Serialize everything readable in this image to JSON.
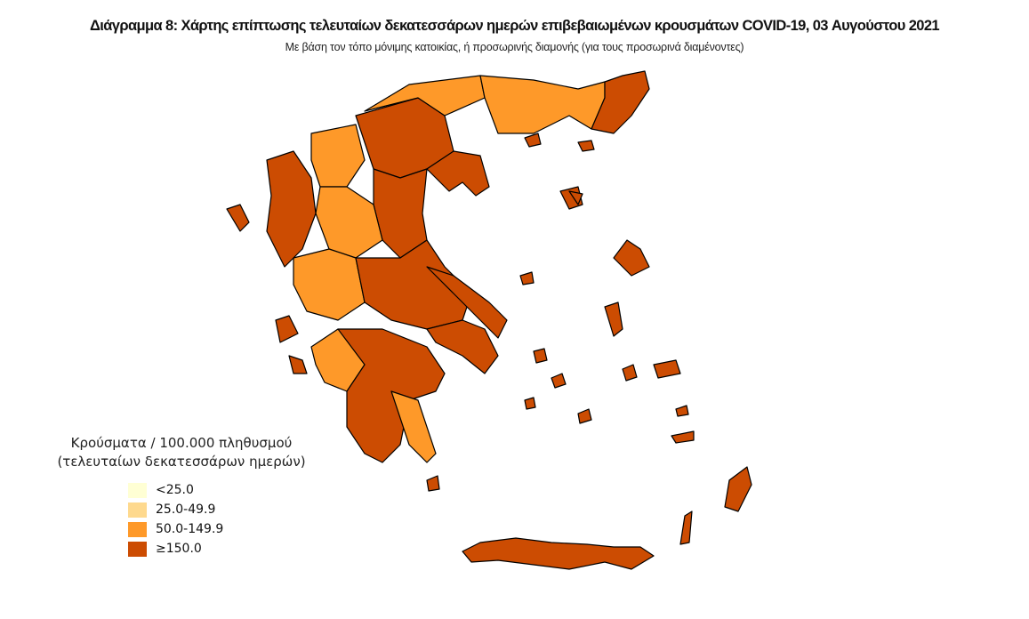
{
  "title": "Διάγραμμα 8: Χάρτης επίπτωσης τελευταίων δεκατεσσάρων ημερών επιβεβαιωμένων κρουσμάτων COVID-19, 03 Αυγούστου 2021",
  "subtitle": "Με βάση τον τόπο μόνιμης κατοικίας, ή προσωρινής διαμονής (για τους προσωρινά διαμένοντες)",
  "legend": {
    "title_line1": "Κρούσματα / 100.000 πληθυσμού",
    "title_line2": "(τελευταίων δεκατεσσάρων ημερών)",
    "classes": [
      {
        "label": "<25.0",
        "color": "#FFFFD4"
      },
      {
        "label": "25.0-49.9",
        "color": "#FED98E"
      },
      {
        "label": "50.0-149.9",
        "color": "#FE9929"
      },
      {
        "label": "≥150.0",
        "color": "#CC4C02"
      }
    ]
  },
  "map": {
    "border_color": "#000000",
    "region_classes": [
      3,
      2,
      3,
      2,
      2,
      3,
      3,
      3,
      2,
      2,
      3,
      3,
      3,
      2,
      3,
      2,
      3,
      3,
      3,
      3,
      3,
      3,
      3,
      3,
      3,
      3,
      3,
      3,
      3,
      3,
      3,
      3,
      3,
      3,
      3,
      3,
      3,
      3
    ]
  }
}
